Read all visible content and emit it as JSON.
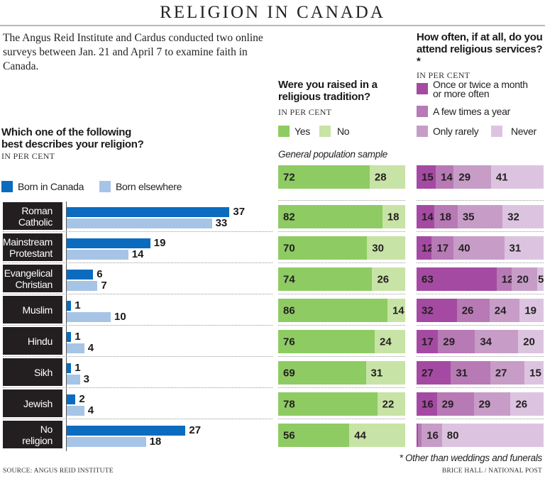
{
  "title": "RELIGION IN CANADA",
  "intro": "The Angus Reid Institute and Cardus conducted two online surveys between Jan. 21 and April 7 to examine faith in Canada.",
  "footer": {
    "source": "SOURCE: ANGUS REID INSTITUTE",
    "credit": "BRICE HALL / NATIONAL POST",
    "footnote": "* Other than weddings and funerals"
  },
  "colors": {
    "born_canada": "#0a6bbf",
    "born_elsewhere": "#a6c4e6",
    "yes": "#8fcb63",
    "no": "#c8e3a6",
    "attend_monthly": "#a54aa2",
    "attend_yearly": "#b77ab5",
    "attend_rarely": "#c79dc8",
    "attend_never": "#dcc4e0",
    "label_bg": "#231f20"
  },
  "chart_data": [
    {
      "type": "bar",
      "orientation": "horizontal",
      "title": "Which one of the following best describes your religion?",
      "subtitle": "IN PER CENT",
      "categories": [
        "Roman Catholic",
        "Mainstream Protestant",
        "Evangelical Christian",
        "Muslim",
        "Hindu",
        "Sikh",
        "Jewish",
        "No religion"
      ],
      "category_lines": [
        [
          "Roman",
          "Catholic"
        ],
        [
          "Mainstream",
          "Protestant"
        ],
        [
          "Evangelical",
          "Christian"
        ],
        [
          "Muslim"
        ],
        [
          "Hindu"
        ],
        [
          "Sikh"
        ],
        [
          "Jewish"
        ],
        [
          "No",
          "religion"
        ]
      ],
      "legend_placement": "top-left",
      "series": [
        {
          "name": "Born in Canada",
          "values": [
            37,
            19,
            6,
            1,
            1,
            1,
            2,
            27
          ]
        },
        {
          "name": "Born elsewhere",
          "values": [
            33,
            14,
            7,
            10,
            4,
            3,
            4,
            18
          ]
        }
      ],
      "xlim": [
        0,
        40
      ]
    },
    {
      "type": "bar",
      "stacked": true,
      "orientation": "horizontal",
      "title": "Were you raised in a religious tradition?",
      "subtitle": "IN PER CENT",
      "note": "General population sample",
      "legend_placement": "top",
      "rows": [
        "General population sample",
        "Roman Catholic",
        "Mainstream Protestant",
        "Evangelical Christian",
        "Muslim",
        "Hindu",
        "Sikh",
        "Jewish",
        "No religion"
      ],
      "series": [
        {
          "name": "Yes",
          "values": [
            72,
            82,
            70,
            74,
            86,
            76,
            69,
            78,
            56
          ]
        },
        {
          "name": "No",
          "values": [
            28,
            18,
            30,
            26,
            14,
            24,
            31,
            22,
            44
          ]
        }
      ],
      "xlim": [
        0,
        100
      ]
    },
    {
      "type": "bar",
      "stacked": true,
      "orientation": "horizontal",
      "title": "How often, if at all, do you attend religious services?*",
      "subtitle": "IN PER CENT",
      "legend_placement": "top",
      "rows": [
        "General population sample",
        "Roman Catholic",
        "Mainstream Protestant",
        "Evangelical Christian",
        "Muslim",
        "Hindu",
        "Sikh",
        "Jewish",
        "No religion"
      ],
      "series": [
        {
          "name": "Once or twice a month or more often",
          "values": [
            15,
            14,
            12,
            63,
            32,
            17,
            27,
            16,
            1
          ]
        },
        {
          "name": "A few times a year",
          "values": [
            14,
            18,
            17,
            12,
            26,
            29,
            31,
            29,
            3
          ]
        },
        {
          "name": "Only rarely",
          "values": [
            29,
            35,
            40,
            20,
            24,
            34,
            27,
            29,
            16
          ]
        },
        {
          "name": "Never",
          "values": [
            41,
            32,
            31,
            5,
            19,
            20,
            15,
            26,
            80
          ]
        }
      ],
      "labels_shown": [
        [
          "15",
          "14",
          "29",
          "41"
        ],
        [
          "14",
          "18",
          "35",
          "32"
        ],
        [
          "12",
          "17",
          "40",
          "31"
        ],
        [
          "63",
          "12",
          "20",
          "5"
        ],
        [
          "32",
          "26",
          "24",
          "19"
        ],
        [
          "17",
          "29",
          "34",
          "20"
        ],
        [
          "27",
          "31",
          "27",
          "15"
        ],
        [
          "16",
          "29",
          "29",
          "26"
        ],
        [
          "",
          "",
          "16",
          "80"
        ]
      ],
      "xlim": [
        0,
        100
      ]
    }
  ],
  "legend": {
    "born_canada": "Born in Canada",
    "born_elsewhere": "Born elsewhere",
    "yes": "Yes",
    "no": "No",
    "attend_monthly_line1": "Once or twice a month",
    "attend_monthly_line2": "or more often",
    "attend_yearly": "A few times a year",
    "attend_rarely": "Only rarely",
    "attend_never": "Never"
  },
  "questions": {
    "religion_line1": "Which one of the following",
    "religion_line2": "best describes your religion?",
    "raised_line1": "Were you raised in a",
    "raised_line2": "religious tradition?",
    "attend_line1": "How often, if at all, do you",
    "attend_line2": "attend religious services?*",
    "unit": "IN PER CENT"
  }
}
